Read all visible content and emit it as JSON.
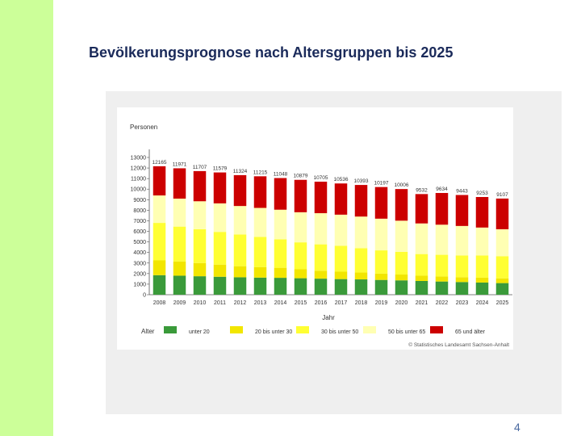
{
  "slide": {
    "title": "Bevölkerungsprognose nach Altersgruppen bis 2025",
    "page_number": "4"
  },
  "chart_data": {
    "type": "bar",
    "stacked": true,
    "title": "",
    "ylabel": "Personen",
    "xlabel": "Jahr",
    "ylim": [
      0,
      13000
    ],
    "yticks": [
      0,
      1000,
      2000,
      3000,
      4000,
      5000,
      6000,
      7000,
      8000,
      9000,
      10000,
      11000,
      12000,
      13000
    ],
    "categories": [
      "2008",
      "2009",
      "2010",
      "2011",
      "2012",
      "2013",
      "2014",
      "2015",
      "2016",
      "2017",
      "2018",
      "2019",
      "2020",
      "2021",
      "2022",
      "2023",
      "2024",
      "2025"
    ],
    "totals": [
      12165,
      11971,
      11707,
      11579,
      11324,
      11215,
      11048,
      10879,
      10705,
      10536,
      10393,
      10197,
      10006,
      9532,
      9634,
      9443,
      9253,
      9107
    ],
    "total_labels": [
      "12165",
      "11971",
      "11707",
      "11579",
      "11324",
      "11215",
      "11048",
      "10879",
      "10705",
      "10536",
      "10393",
      "10197",
      "10006",
      "9532",
      "9634",
      "9443",
      "9253",
      "9107"
    ],
    "series": [
      {
        "name": "unter 20",
        "color": "#3a9a3a",
        "values": [
          1850,
          1800,
          1750,
          1700,
          1650,
          1620,
          1600,
          1560,
          1520,
          1480,
          1450,
          1400,
          1360,
          1300,
          1250,
          1200,
          1150,
          1100
        ]
      },
      {
        "name": "20 bis unter 30",
        "color": "#f2e600",
        "values": [
          1400,
          1350,
          1250,
          1150,
          1050,
          1000,
          950,
          850,
          750,
          700,
          650,
          600,
          550,
          500,
          480,
          460,
          460,
          450
        ]
      },
      {
        "name": "30 bis unter 50",
        "color": "#ffff33",
        "values": [
          3550,
          3300,
          3200,
          3100,
          3000,
          2850,
          2700,
          2550,
          2500,
          2450,
          2300,
          2200,
          2150,
          2050,
          2050,
          2050,
          2100,
          2100
        ]
      },
      {
        "name": "50 bis unter 65",
        "color": "#ffffb3",
        "values": [
          2600,
          2650,
          2650,
          2700,
          2700,
          2750,
          2800,
          2850,
          2950,
          2950,
          3000,
          3000,
          2950,
          2900,
          2850,
          2800,
          2650,
          2550
        ]
      },
      {
        "name": "65 und älter",
        "color": "#cc0000",
        "values": [
          2765,
          2871,
          2857,
          2929,
          2924,
          2995,
          2998,
          3069,
          2985,
          2956,
          2993,
          2997,
          2996,
          2782,
          3004,
          2933,
          2893,
          2907
        ]
      }
    ],
    "legend": {
      "title": "Alter",
      "position": "bottom"
    },
    "source": "© Statistisches Landesamt Sachsen-Anhalt"
  }
}
